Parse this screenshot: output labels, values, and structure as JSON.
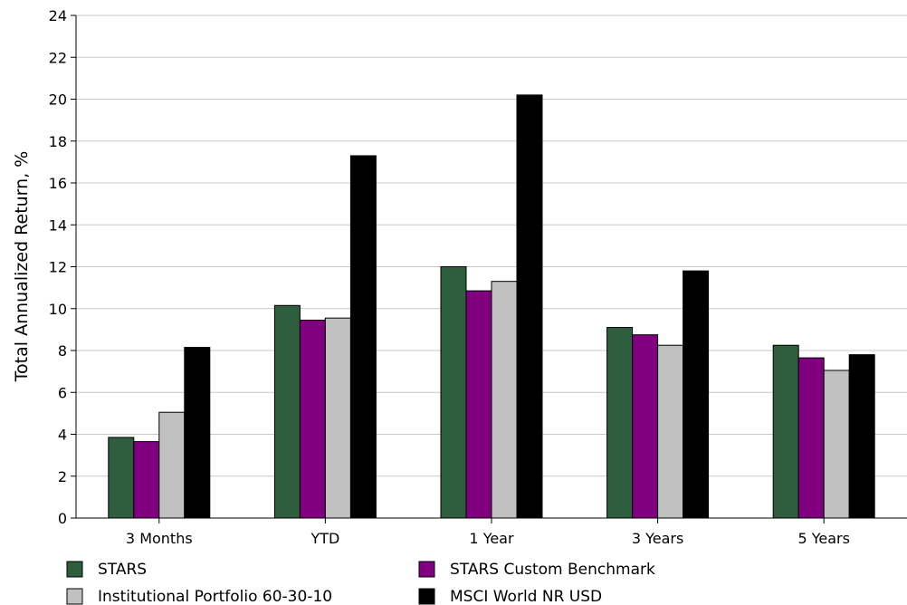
{
  "chart_data": {
    "type": "bar",
    "title": "",
    "xlabel": "",
    "ylabel": "Total Annualized Return, %",
    "ylim": [
      0,
      24
    ],
    "yticks": [
      0,
      2,
      4,
      6,
      8,
      10,
      12,
      14,
      16,
      18,
      20,
      22,
      24
    ],
    "grid": true,
    "legend_position": "bottom",
    "categories": [
      "3 Months",
      "YTD",
      "1 Year",
      "3 Years",
      "5 Years"
    ],
    "series": [
      {
        "name": "STARS",
        "color": "#2e5e3e",
        "values": [
          3.85,
          10.15,
          12.0,
          9.1,
          8.25
        ]
      },
      {
        "name": "STARS Custom Benchmark",
        "color": "#800080",
        "values": [
          3.65,
          9.45,
          10.85,
          8.75,
          7.65
        ]
      },
      {
        "name": "Institutional Portfolio 60-30-10",
        "color": "#c0c0c0",
        "values": [
          5.05,
          9.55,
          11.3,
          8.25,
          7.05
        ]
      },
      {
        "name": "MSCI World NR USD",
        "color": "#000000",
        "values": [
          8.15,
          17.3,
          20.2,
          11.8,
          7.8
        ]
      }
    ]
  }
}
